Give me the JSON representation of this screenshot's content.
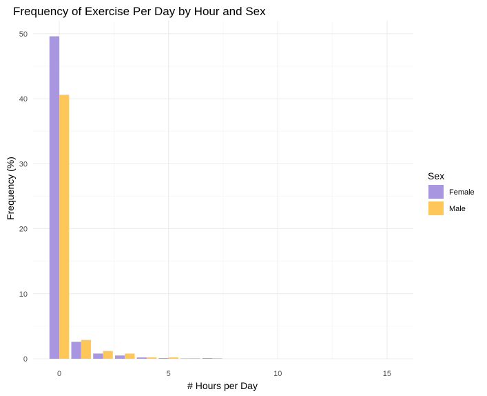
{
  "chart_data": {
    "type": "bar",
    "title": "Frequency of Exercise Per Day by Hour and Sex",
    "xlabel": "# Hours per Day",
    "ylabel": "Frequency (%)",
    "xlim": [
      -1.2,
      16.2
    ],
    "ylim": [
      0,
      52
    ],
    "xticks": [
      0,
      5,
      10,
      15
    ],
    "yticks": [
      0,
      10,
      20,
      30,
      40,
      50
    ],
    "grid": true,
    "legend": {
      "title": "Sex",
      "position": "right"
    },
    "x": [
      0,
      1,
      2,
      3,
      4,
      5,
      6,
      7
    ],
    "series": [
      {
        "name": "Female",
        "color": "#a996e0",
        "values": [
          49.6,
          2.6,
          0.8,
          0.5,
          0.2,
          0.1,
          0.05,
          0.1
        ]
      },
      {
        "name": "Male",
        "color": "#ffc759",
        "values": [
          40.6,
          2.9,
          1.2,
          0.8,
          0.2,
          0.2,
          0.1,
          0.1
        ]
      }
    ]
  }
}
